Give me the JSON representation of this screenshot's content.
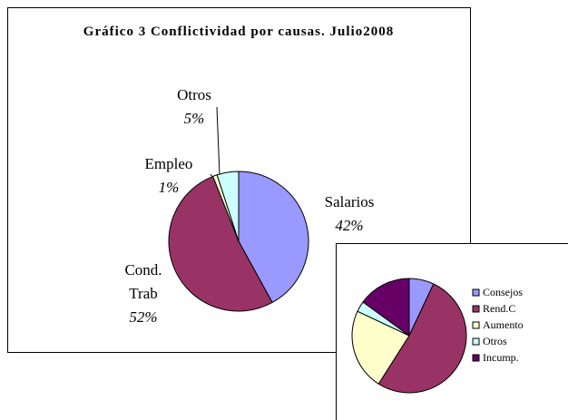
{
  "chart_data": [
    {
      "type": "pie",
      "title": "Gráfico 3 Conflictividad por causas. Julio2008",
      "categories": [
        "Salarios",
        "Cond. Trab",
        "Empleo",
        "Otros"
      ],
      "values": [
        42,
        52,
        1,
        5
      ],
      "value_labels": [
        "42%",
        "52%",
        "1%",
        "5%"
      ],
      "colors": [
        "#9999ff",
        "#993366",
        "#ffffcc",
        "#ccffff"
      ]
    },
    {
      "type": "pie",
      "categories": [
        "Consejos",
        "Rend.C",
        "Aumento",
        "Otros",
        "Incump."
      ],
      "values": [
        7,
        52,
        23,
        3,
        15
      ],
      "colors": [
        "#9999ff",
        "#993366",
        "#ffffcc",
        "#ccffff",
        "#660066"
      ],
      "legend": "right"
    }
  ]
}
